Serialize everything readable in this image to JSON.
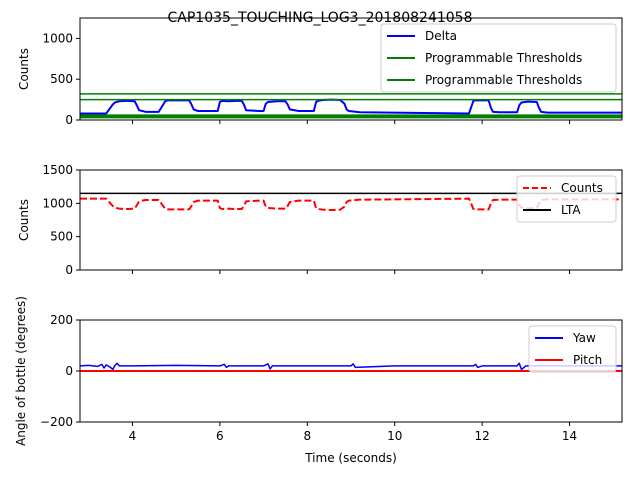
{
  "figure_title": "CAP1035_TOUCHING_LOG3_201808241058",
  "chart_data": [
    {
      "type": "line",
      "ylabel": "Counts",
      "xlabel": "",
      "xlim": [
        2.8,
        15.2
      ],
      "ylim": [
        0,
        1250
      ],
      "yticks": [
        0,
        500,
        1000
      ],
      "show_x_tick_labels": false,
      "legend_placement": "top-right",
      "series": [
        {
          "name": "Delta",
          "color": "#0000ff",
          "style": "solid",
          "width": 2,
          "x": [
            2.8,
            3.4,
            3.55,
            3.6,
            3.7,
            3.85,
            4.05,
            4.1,
            4.15,
            4.3,
            4.6,
            4.75,
            4.8,
            4.85,
            5.3,
            5.35,
            5.4,
            5.5,
            5.95,
            6.0,
            6.05,
            6.2,
            6.35,
            6.5,
            6.55,
            6.6,
            6.9,
            7.0,
            7.05,
            7.1,
            7.3,
            7.5,
            7.55,
            7.6,
            7.8,
            8.15,
            8.2,
            8.25,
            8.35,
            8.55,
            8.75,
            8.85,
            8.9,
            8.95,
            9.2,
            11.7,
            11.8,
            11.85,
            11.95,
            12.15,
            12.2,
            12.25,
            12.4,
            12.8,
            12.85,
            12.9,
            13.05,
            13.25,
            13.3,
            13.35,
            13.5,
            15.2
          ],
          "y": [
            80,
            80,
            190,
            215,
            230,
            235,
            230,
            180,
            120,
            100,
            100,
            230,
            240,
            240,
            240,
            190,
            130,
            110,
            110,
            220,
            235,
            230,
            235,
            235,
            190,
            120,
            110,
            110,
            200,
            220,
            230,
            230,
            190,
            130,
            110,
            110,
            220,
            235,
            245,
            250,
            245,
            200,
            130,
            110,
            95,
            80,
            235,
            240,
            240,
            240,
            150,
            100,
            95,
            95,
            180,
            215,
            225,
            220,
            150,
            100,
            90,
            90
          ]
        },
        {
          "name": "Programmable Thresholds",
          "color": "#008000",
          "style": "solid",
          "width": 1.5,
          "x": [
            2.8,
            15.2
          ],
          "y": [
            320,
            320
          ]
        },
        {
          "name": "Programmable Thresholds",
          "color": "#008000",
          "style": "solid",
          "width": 1.5,
          "x": [
            2.8,
            15.2
          ],
          "y": [
            250,
            250
          ]
        },
        {
          "name": "",
          "color": "#008000",
          "style": "solid",
          "width": 4,
          "x": [
            2.8,
            15.2
          ],
          "y": [
            45,
            45
          ]
        }
      ]
    },
    {
      "type": "line",
      "ylabel": "Counts",
      "xlabel": "",
      "xlim": [
        2.8,
        15.2
      ],
      "ylim": [
        0,
        1500
      ],
      "yticks": [
        0,
        500,
        1000,
        1500
      ],
      "show_x_tick_labels": false,
      "legend_placement": "top-right",
      "series": [
        {
          "name": "Counts",
          "color": "#ff0000",
          "style": "dashed",
          "width": 2,
          "x": [
            2.8,
            3.4,
            3.55,
            3.6,
            3.7,
            3.85,
            4.05,
            4.1,
            4.15,
            4.3,
            4.6,
            4.75,
            4.8,
            4.85,
            5.3,
            5.35,
            5.4,
            5.5,
            5.95,
            6.0,
            6.05,
            6.2,
            6.35,
            6.5,
            6.55,
            6.6,
            6.9,
            7.0,
            7.05,
            7.1,
            7.3,
            7.5,
            7.55,
            7.6,
            7.8,
            8.15,
            8.2,
            8.25,
            8.35,
            8.55,
            8.75,
            8.85,
            8.9,
            8.95,
            9.2,
            11.7,
            11.8,
            11.85,
            11.95,
            12.15,
            12.2,
            12.25,
            12.4,
            12.8,
            12.85,
            12.9,
            13.05,
            13.25,
            13.3,
            13.35,
            13.5,
            15.2
          ],
          "y": [
            1070,
            1070,
            960,
            935,
            920,
            915,
            920,
            970,
            1030,
            1050,
            1050,
            920,
            910,
            910,
            910,
            960,
            1020,
            1040,
            1040,
            930,
            915,
            920,
            915,
            915,
            960,
            1030,
            1040,
            1040,
            950,
            930,
            920,
            920,
            960,
            1020,
            1040,
            1040,
            930,
            915,
            905,
            900,
            905,
            950,
            1020,
            1040,
            1055,
            1070,
            915,
            910,
            910,
            910,
            1000,
            1050,
            1055,
            1055,
            970,
            935,
            925,
            930,
            1000,
            1050,
            1060,
            1060
          ]
        },
        {
          "name": "LTA",
          "color": "#000000",
          "style": "solid",
          "width": 1.5,
          "x": [
            2.8,
            15.2
          ],
          "y": [
            1150,
            1150
          ]
        }
      ]
    },
    {
      "type": "line",
      "ylabel": "Angle of bottle (degrees)",
      "xlabel": "Time (seconds)",
      "xlim": [
        2.8,
        15.2
      ],
      "ylim": [
        -200,
        200
      ],
      "yticks": [
        -200,
        0,
        200
      ],
      "xticks": [
        4,
        6,
        8,
        10,
        12,
        14
      ],
      "show_x_tick_labels": true,
      "legend_placement": "top-right",
      "series": [
        {
          "name": "Yaw",
          "color": "#0000ff",
          "style": "solid",
          "width": 1.5,
          "x": [
            2.8,
            3.0,
            3.2,
            3.3,
            3.35,
            3.4,
            3.5,
            3.55,
            3.6,
            3.65,
            3.7,
            4.0,
            5.0,
            6.0,
            6.1,
            6.15,
            6.2,
            7.0,
            7.1,
            7.15,
            7.2,
            8.0,
            9.0,
            9.05,
            9.1,
            10.0,
            11.0,
            11.8,
            11.85,
            11.9,
            12.0,
            12.8,
            12.85,
            12.9,
            13.0,
            14.0,
            15.2
          ],
          "y": [
            20,
            22,
            18,
            26,
            12,
            24,
            14,
            6,
            22,
            30,
            20,
            20,
            22,
            20,
            26,
            14,
            20,
            20,
            28,
            8,
            20,
            20,
            20,
            28,
            14,
            20,
            20,
            20,
            26,
            14,
            20,
            20,
            30,
            6,
            20,
            20,
            20
          ]
        },
        {
          "name": "Pitch",
          "color": "#ff0000",
          "style": "solid",
          "width": 2,
          "x": [
            2.8,
            15.2
          ],
          "y": [
            0,
            0
          ]
        }
      ]
    }
  ]
}
